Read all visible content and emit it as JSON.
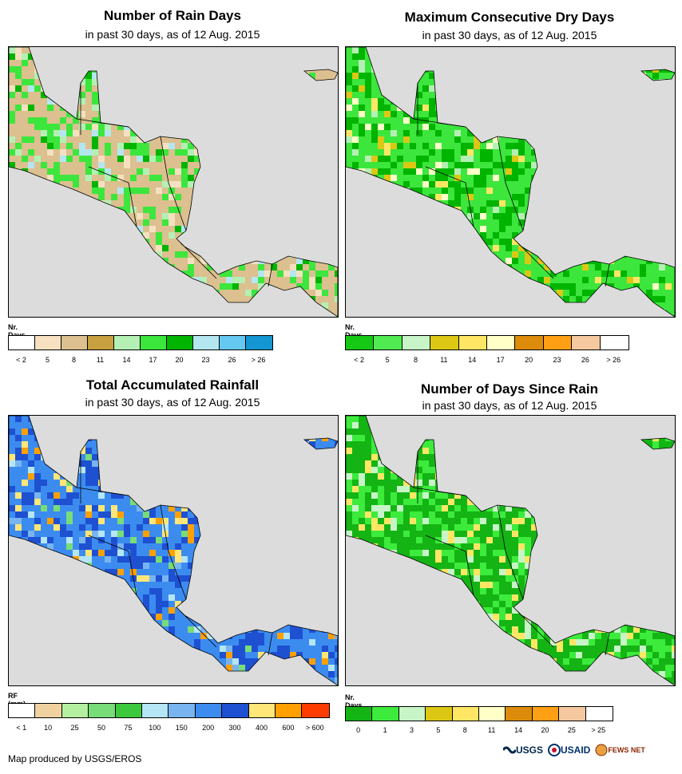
{
  "panels": [
    {
      "title": "Number of Rain Days",
      "subtitle": "in past 30 days, as of 12 Aug. 2015",
      "legend_title": "Nr. Days",
      "legend_colors": [
        "#ffffff",
        "#f5e0c0",
        "#dcc090",
        "#c8a040",
        "#b4f0b4",
        "#3ce63c",
        "#00b400",
        "#b4e6f0",
        "#64c8f0",
        "#1496d2"
      ],
      "ticks": [
        "< 2",
        "5",
        "8",
        "11",
        "14",
        "17",
        "20",
        "23",
        "26",
        "> 26"
      ],
      "map_palette": [
        "#dcc090",
        "#3ce63c",
        "#00b400",
        "#b4f0b4",
        "#f5e0c0",
        "#b4e6f0"
      ]
    },
    {
      "title": "Maximum Consecutive Dry Days",
      "subtitle": "in past 30 days, as of 12 Aug. 2015",
      "legend_title": "Nr. Days",
      "legend_colors": [
        "#14c814",
        "#50eb50",
        "#c8f5c8",
        "#dcc814",
        "#ffe664",
        "#ffffc8",
        "#dc8c0a",
        "#ffa014",
        "#f5c8a0",
        "#ffffff"
      ],
      "ticks": [
        "< 2",
        "5",
        "8",
        "11",
        "14",
        "17",
        "20",
        "23",
        "26",
        "> 26"
      ],
      "map_palette": [
        "#3ce63c",
        "#00b400",
        "#b4f0b4",
        "#dcc814",
        "#ffe664",
        "#ffffc8"
      ]
    },
    {
      "title": "Total Accumulated Rainfall",
      "subtitle": "in past 30 days, as of 12 Aug. 2015",
      "legend_title": "RF (mm)",
      "legend_colors": [
        "#ffffff",
        "#f0d2a0",
        "#b4f0a0",
        "#78dc78",
        "#3cc83c",
        "#b4e6f5",
        "#78b4f0",
        "#3c8cf0",
        "#1e50d2",
        "#ffe678",
        "#ffa000",
        "#ff3c00"
      ],
      "ticks": [
        "< 1",
        "10",
        "25",
        "50",
        "75",
        "100",
        "150",
        "200",
        "300",
        "400",
        "600",
        "> 600"
      ],
      "map_palette": [
        "#3c8cf0",
        "#1e50d2",
        "#78b4f0",
        "#78dc78",
        "#ffe678",
        "#ffa000",
        "#b4e6f5"
      ]
    },
    {
      "title": "Number of Days Since Rain",
      "subtitle": "in past 30 days, as of 12 Aug. 2015",
      "legend_title": "Nr. Days",
      "legend_colors": [
        "#14b414",
        "#3ceb3c",
        "#c8f5c8",
        "#dcc814",
        "#ffe664",
        "#ffffc8",
        "#dc8c0a",
        "#ffa014",
        "#f5c8a0",
        "#ffffff"
      ],
      "ticks": [
        "0",
        "1",
        "3",
        "5",
        "8",
        "11",
        "14",
        "20",
        "25",
        "> 25"
      ],
      "map_palette": [
        "#14b414",
        "#3ceb3c",
        "#c8f5c8",
        "#ffe664"
      ]
    }
  ],
  "credit": "Map produced by USGS/EROS",
  "logos": {
    "usgs": "USGS",
    "usaid": "USAID",
    "fews": "FEWS NET"
  }
}
